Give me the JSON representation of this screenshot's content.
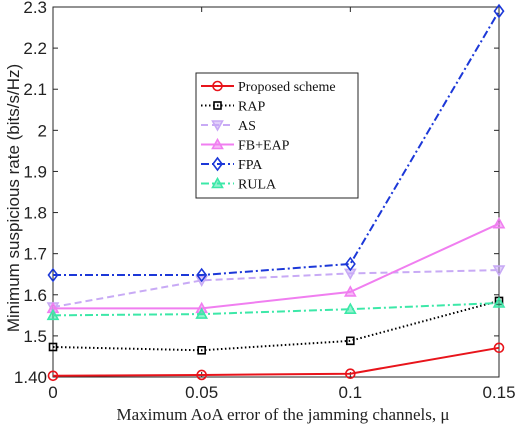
{
  "chart_data": {
    "type": "line",
    "title": "",
    "xlabel": "Maximum AoA error of the jamming channels, μ",
    "ylabel": "Minimum suspicious rate (bits/s/Hz)",
    "x": [
      0,
      0.05,
      0.1,
      0.15
    ],
    "x_tick_labels": [
      "0",
      "0.05",
      "0.1",
      "0.15"
    ],
    "xlim": [
      0,
      0.15
    ],
    "ylim": [
      1.4,
      2.3
    ],
    "y_ticks": [
      1.4,
      1.5,
      1.6,
      1.7,
      1.8,
      1.9,
      2.0,
      2.1,
      2.2,
      2.3
    ],
    "y_tick_labels": [
      "1.40",
      "1.5",
      "1.6",
      "1.7",
      "1.8",
      "1.9",
      "2",
      "2.1",
      "2.2",
      "2.3"
    ],
    "grid": false,
    "legend_position": "center-left",
    "series": [
      {
        "name": "Proposed scheme",
        "values": [
          1.403,
          1.405,
          1.408,
          1.471
        ],
        "color": "#e8141b",
        "dash": "solid",
        "marker": "circle"
      },
      {
        "name": "RAP",
        "values": [
          1.473,
          1.465,
          1.488,
          1.585
        ],
        "color": "#000000",
        "dash": "dotted",
        "marker": "square"
      },
      {
        "name": "AS",
        "values": [
          1.57,
          1.635,
          1.652,
          1.66
        ],
        "color": "#c8aaf5",
        "dash": "dashed",
        "marker": "triangle-down"
      },
      {
        "name": "FB+EAP",
        "values": [
          1.567,
          1.567,
          1.607,
          1.773
        ],
        "color": "#f07ef0",
        "dash": "solid",
        "marker": "triangle-up"
      },
      {
        "name": "FPA",
        "values": [
          1.648,
          1.648,
          1.675,
          2.29
        ],
        "color": "#1c38d8",
        "dash": "dashdot",
        "marker": "diamond"
      },
      {
        "name": "RULA",
        "values": [
          1.55,
          1.553,
          1.565,
          1.58
        ],
        "color": "#3ce8a8",
        "dash": "dashdot",
        "marker": "triangle-up"
      }
    ]
  }
}
